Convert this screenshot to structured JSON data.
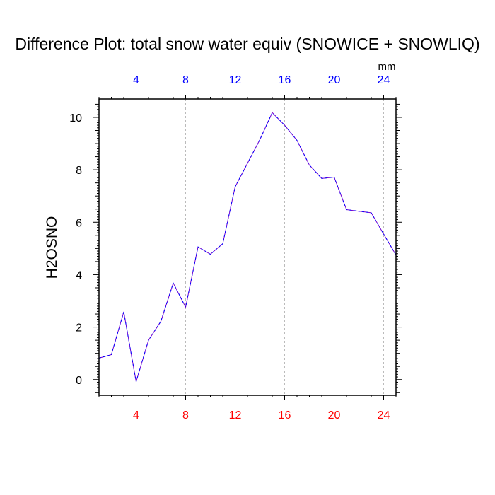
{
  "chart_data": {
    "type": "line",
    "title": "Difference Plot: total snow water equiv (SNOWICE + SNOWLIQ)",
    "ylabel": "H2OSNO",
    "top_axis_units": "mm",
    "xlim": [
      1,
      25
    ],
    "ylim": [
      -0.6,
      10.7
    ],
    "x_ticks": [
      4,
      8,
      12,
      16,
      20,
      24
    ],
    "x_tick_labels": [
      "4",
      "8",
      "12",
      "16",
      "20",
      "24"
    ],
    "y_ticks": [
      0,
      2,
      4,
      6,
      8,
      10
    ],
    "y_tick_labels": [
      "0",
      "2",
      "4",
      "6",
      "8",
      "10"
    ],
    "grid": "vertical dashed at major x ticks",
    "colors": {
      "bottom_tick_labels": "#ff0000",
      "top_tick_labels": "#0000ff",
      "series_line": "#7700cc",
      "series_dash": "#0000ff",
      "grid": "#bbbbbb"
    },
    "x": [
      1,
      2,
      3,
      4,
      5,
      6,
      7,
      8,
      9,
      10,
      11,
      12,
      13,
      14,
      15,
      16,
      17,
      18,
      19,
      20,
      21,
      22,
      23,
      24,
      25
    ],
    "series": [
      {
        "values": [
          0.82,
          0.95,
          2.58,
          -0.08,
          1.5,
          2.22,
          3.68,
          2.76,
          5.06,
          4.78,
          5.18,
          7.35,
          8.25,
          9.15,
          10.18,
          9.7,
          9.12,
          8.18,
          7.67,
          7.72,
          6.48,
          6.42,
          6.36,
          5.55,
          4.75
        ]
      }
    ]
  }
}
